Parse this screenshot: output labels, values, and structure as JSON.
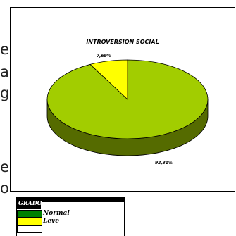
{
  "page_text": {
    "fragments": [
      "e",
      "a",
      "g",
      "e",
      "o"
    ]
  },
  "chart_data": {
    "type": "pie",
    "title": "INTROVERSION SOCIAL",
    "three_d": true,
    "slices": [
      {
        "label": "92,31%",
        "value": 92.31,
        "color": "#a2cd00",
        "side_color": "#556b00"
      },
      {
        "label": "7,69%",
        "value": 7.69,
        "color": "#ffff00",
        "side_color": "#8a8a00"
      }
    ]
  },
  "legend": {
    "tag": "GRADO",
    "items": [
      {
        "label": "Normal",
        "color": "#008000"
      },
      {
        "label": "Leve",
        "color": "#ffff00"
      },
      {
        "label": "",
        "color": "#ffffff"
      }
    ]
  }
}
